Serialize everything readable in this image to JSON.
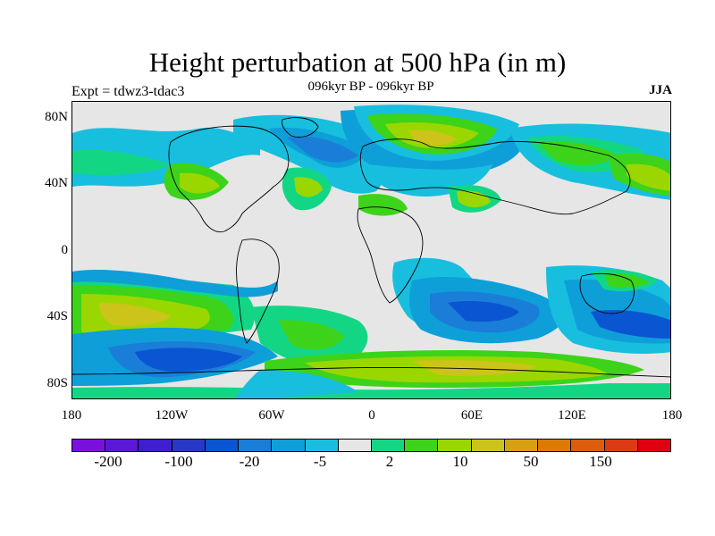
{
  "title": "Height perturbation at 500 hPa (in m)",
  "subtitle": "096kyr BP - 096kyr BP",
  "left_label": "Expt = tdwz3-tdac3",
  "right_label": "JJA",
  "lat_labels": [
    "80N",
    "40N",
    "0",
    "40S",
    "80S"
  ],
  "lon_labels": [
    "180",
    "120W",
    "60W",
    "0",
    "60E",
    "120E",
    "180"
  ],
  "colorbar": {
    "colors": [
      "#7a10de",
      "#5b18d8",
      "#3e1ed0",
      "#2838c8",
      "#0a55d2",
      "#1a7ed8",
      "#0e9fd8",
      "#18bede",
      "#e6e6e6",
      "#13d685",
      "#3cd31a",
      "#9ad700",
      "#ccc41a",
      "#d7a011",
      "#dc7a04",
      "#de5c0c",
      "#dc3a14",
      "#e00010"
    ],
    "labels": [
      "-200",
      "-100",
      "-20",
      "-5",
      "2",
      "10",
      "50",
      "150"
    ]
  },
  "map_colors": {
    "background": "#e6e6e6",
    "cyan": "#18bede",
    "light_blue": "#0e9fd8",
    "blue": "#1a7ed8",
    "dark_blue": "#0a55d2",
    "teal": "#13d685",
    "green": "#3cd31a",
    "yellow_green": "#9ad700",
    "olive": "#ccc41a",
    "orange": "#d7a011"
  },
  "icons": [
    "world-coastlines"
  ]
}
